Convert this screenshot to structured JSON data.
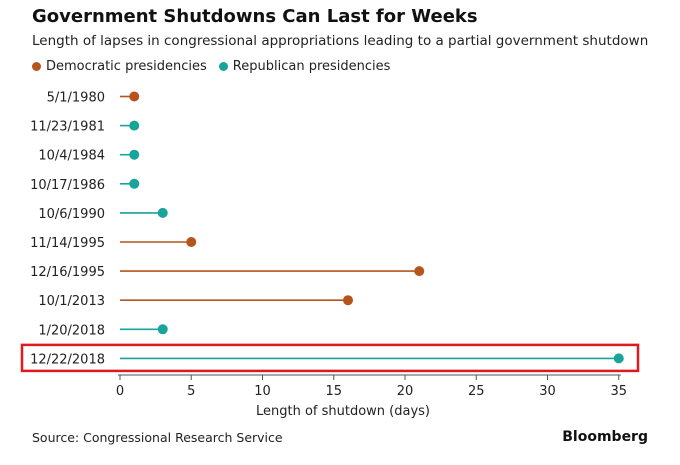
{
  "chart_data": {
    "type": "lollipop",
    "title": "Government Shutdowns Can Last for Weeks",
    "subtitle": "Length of lapses in congressional appropriations leading to a partial government shutdown",
    "xlabel": "Length of shutdown (days)",
    "xlim": [
      0,
      35
    ],
    "xticks": [
      0,
      5,
      10,
      15,
      20,
      25,
      30,
      35
    ],
    "legend": [
      {
        "label": "Democratic presidencies",
        "color": "#b5541c"
      },
      {
        "label": "Republican presidencies",
        "color": "#1aa39a"
      }
    ],
    "points": [
      {
        "date": "5/1/1980",
        "days": 1,
        "party": "Democratic"
      },
      {
        "date": "11/23/1981",
        "days": 1,
        "party": "Republican"
      },
      {
        "date": "10/4/1984",
        "days": 1,
        "party": "Republican"
      },
      {
        "date": "10/17/1986",
        "days": 1,
        "party": "Republican"
      },
      {
        "date": "10/6/1990",
        "days": 3,
        "party": "Republican"
      },
      {
        "date": "11/14/1995",
        "days": 5,
        "party": "Democratic"
      },
      {
        "date": "12/16/1995",
        "days": 21,
        "party": "Democratic"
      },
      {
        "date": "10/1/2013",
        "days": 16,
        "party": "Democratic"
      },
      {
        "date": "1/20/2018",
        "days": 3,
        "party": "Republican"
      },
      {
        "date": "12/22/2018",
        "days": 35,
        "party": "Republican",
        "highlighted": true
      }
    ],
    "highlight_color": "#e0191f"
  },
  "source": "Source: Congressional Research Service",
  "brand": "Bloomberg"
}
